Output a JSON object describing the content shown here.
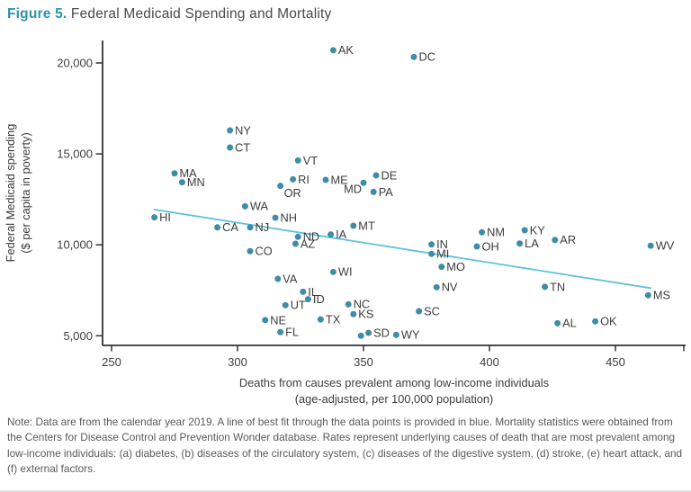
{
  "title": {
    "prefix": "Figure 5.",
    "rest": " Federal Medicaid Spending and Mortality"
  },
  "note": "Note: Data are from the calendar year 2019. A line of best fit through the data points is provided in blue. Mortality statistics were obtained from the Centers for Disease Control and Prevention Wonder database. Rates represent underlying causes of death that are most prevalent among low-income individuals: (a) diabetes, (b) diseases of the circulatory system, (c) diseases of the digestive system, (d) stroke, (e) heart attack, and (f) external factors.",
  "colors": {
    "accent": "#2a93ab",
    "title_text": "#4a4a4a",
    "dot": "#3e8ca6",
    "trend_line": "#5ec1dc",
    "axis": "#333333",
    "tick_text": "#3d3d3d",
    "point_label": "#3d3d3d",
    "note_text": "#58595b"
  },
  "chart_data": {
    "type": "scatter",
    "title": "Federal Medicaid Spending and Mortality",
    "xlabel": "Deaths from causes prevalent among low-income individuals",
    "xlabel_line2": "(age-adjusted, per 100,000 population)",
    "ylabel": "Federal Medicaid spending",
    "ylabel_line2": "($ per capita in poverty)",
    "xlim": [
      246,
      478
    ],
    "ylim": [
      4470,
      21240
    ],
    "grid": false,
    "legend": "none",
    "x_ticks": [
      {
        "v": 250,
        "label": "250"
      },
      {
        "v": 300,
        "label": "300"
      },
      {
        "v": 350,
        "label": "350"
      },
      {
        "v": 400,
        "label": "400"
      },
      {
        "v": 450,
        "label": "450"
      }
    ],
    "x_axis_end_tick": true,
    "y_ticks": [
      {
        "v": 5000,
        "label": "5,000"
      },
      {
        "v": 10000,
        "label": "10,000"
      },
      {
        "v": 15000,
        "label": "15,000"
      },
      {
        "v": 20000,
        "label": "20,000"
      }
    ],
    "trendline": {
      "x1": 267,
      "y1": 11940,
      "x2": 464,
      "y2": 7620
    },
    "points": [
      {
        "state": "AK",
        "x": 338,
        "y": 20700
      },
      {
        "state": "DC",
        "x": 370,
        "y": 20330
      },
      {
        "state": "NY",
        "x": 297,
        "y": 16290
      },
      {
        "state": "CT",
        "x": 297,
        "y": 15350
      },
      {
        "state": "VT",
        "x": 324,
        "y": 14640
      },
      {
        "state": "MA",
        "x": 275,
        "y": 13930
      },
      {
        "state": "DE",
        "x": 355,
        "y": 13820
      },
      {
        "state": "RI",
        "x": 322,
        "y": 13600
      },
      {
        "state": "ME",
        "x": 335,
        "y": 13570
      },
      {
        "state": "MN",
        "x": 278,
        "y": 13440
      },
      {
        "state": "MD",
        "x": 350,
        "y": 13410,
        "lp": "bl"
      },
      {
        "state": "OR",
        "x": 317,
        "y": 13240,
        "lp": "br"
      },
      {
        "state": "PA",
        "x": 354,
        "y": 12910
      },
      {
        "state": "WA",
        "x": 303,
        "y": 12120
      },
      {
        "state": "HI",
        "x": 267,
        "y": 11510
      },
      {
        "state": "NH",
        "x": 315,
        "y": 11490
      },
      {
        "state": "MT",
        "x": 346,
        "y": 11050
      },
      {
        "state": "CA",
        "x": 292,
        "y": 10960
      },
      {
        "state": "NJ",
        "x": 305,
        "y": 10960
      },
      {
        "state": "KY",
        "x": 414,
        "y": 10800
      },
      {
        "state": "NM",
        "x": 397,
        "y": 10690
      },
      {
        "state": "IA",
        "x": 337,
        "y": 10570
      },
      {
        "state": "ND",
        "x": 324,
        "y": 10440
      },
      {
        "state": "AR",
        "x": 426,
        "y": 10270
      },
      {
        "state": "LA",
        "x": 412,
        "y": 10070
      },
      {
        "state": "AZ",
        "x": 323,
        "y": 10060
      },
      {
        "state": "IN",
        "x": 377,
        "y": 10020
      },
      {
        "state": "WV",
        "x": 464,
        "y": 9950
      },
      {
        "state": "OH",
        "x": 395,
        "y": 9910
      },
      {
        "state": "CO",
        "x": 305,
        "y": 9650
      },
      {
        "state": "MI",
        "x": 377,
        "y": 9500
      },
      {
        "state": "MO",
        "x": 381,
        "y": 8790
      },
      {
        "state": "WI",
        "x": 338,
        "y": 8510
      },
      {
        "state": "VA",
        "x": 316,
        "y": 8130
      },
      {
        "state": "TN",
        "x": 422,
        "y": 7690
      },
      {
        "state": "NV",
        "x": 379,
        "y": 7670
      },
      {
        "state": "IL",
        "x": 326,
        "y": 7420
      },
      {
        "state": "MS",
        "x": 463,
        "y": 7230
      },
      {
        "state": "ID",
        "x": 328,
        "y": 7010
      },
      {
        "state": "NC",
        "x": 344,
        "y": 6730
      },
      {
        "state": "UT",
        "x": 319,
        "y": 6680
      },
      {
        "state": "SC",
        "x": 372,
        "y": 6350
      },
      {
        "state": "KS",
        "x": 346,
        "y": 6190
      },
      {
        "state": "TX",
        "x": 333,
        "y": 5900
      },
      {
        "state": "NE",
        "x": 311,
        "y": 5860
      },
      {
        "state": "OK",
        "x": 442,
        "y": 5790
      },
      {
        "state": "AL",
        "x": 427,
        "y": 5690
      },
      {
        "state": "FL",
        "x": 317,
        "y": 5200
      },
      {
        "state": "SD",
        "x": 352,
        "y": 5160
      },
      {
        "state": "WY",
        "x": 363,
        "y": 5050
      },
      {
        "state": "",
        "x": 349,
        "y": 5000
      }
    ]
  }
}
